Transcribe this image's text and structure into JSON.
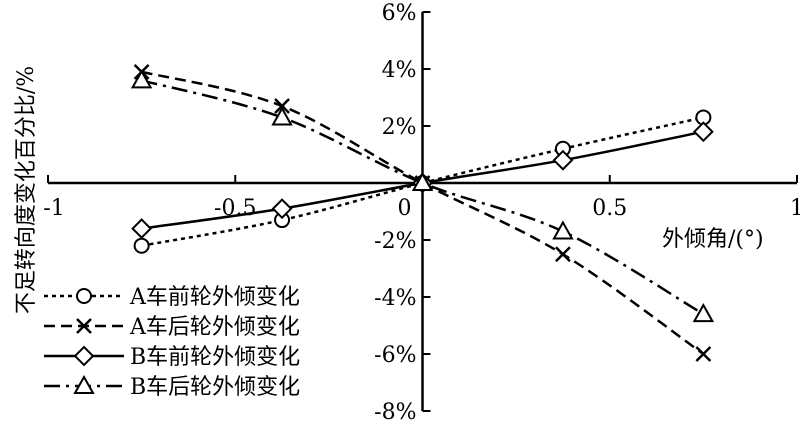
{
  "chart_data": {
    "type": "line",
    "xlabel": "外倾角/(°)",
    "ylabel": "不足转向度变化百分比/%",
    "xlim": [
      -1,
      1
    ],
    "ylim": [
      -8,
      6
    ],
    "x_ticks": [
      -1,
      -0.5,
      0,
      0.5,
      1
    ],
    "x_tick_labels": [
      "-1",
      "-0.5",
      "0",
      "0.5",
      "1"
    ],
    "y_ticks": [
      6,
      4,
      2,
      -2,
      -4,
      -6,
      -8
    ],
    "y_tick_labels": [
      "6%",
      "4%",
      "2%",
      "-2%",
      "-4%",
      "-6%",
      "-8%"
    ],
    "x": [
      -0.75,
      -0.375,
      0,
      0.375,
      0.75
    ],
    "series": [
      {
        "name": "A车前轮外倾变化",
        "values": [
          -2.2,
          -1.3,
          0,
          1.2,
          2.3
        ],
        "marker": "circle",
        "dash": "dotted"
      },
      {
        "name": "A车后轮外倾变化",
        "values": [
          3.9,
          2.7,
          0,
          -2.5,
          -6.0
        ],
        "marker": "x",
        "dash": "dashed"
      },
      {
        "name": "B车前轮外倾变化",
        "values": [
          -1.6,
          -0.9,
          0,
          0.8,
          1.8
        ],
        "marker": "diamond",
        "dash": "solid"
      },
      {
        "name": "B车后轮外倾变化",
        "values": [
          3.6,
          2.3,
          0,
          -1.7,
          -4.6
        ],
        "marker": "triangle",
        "dash": "dashdot"
      }
    ],
    "legend_position": "bottom-left",
    "grid": false
  }
}
